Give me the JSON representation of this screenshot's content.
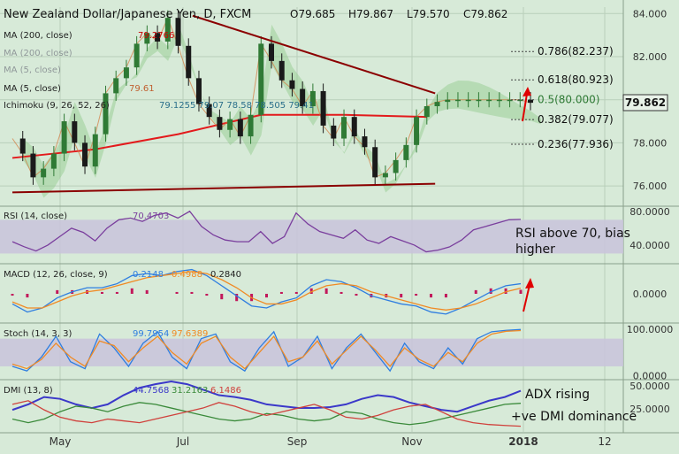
{
  "colors": {
    "background": "#d7ead8",
    "grid": "#b9cfba",
    "candle_up": "#2f7a35",
    "candle_down": "#1a1a1a",
    "ma200": "#e31a1c",
    "ma5": "#d4763a",
    "cloud_up": "#8fc98a",
    "cloud_down": "#d9a88a",
    "trendline": "#8b0000",
    "annotation": "#e00000",
    "rsi": "#7a3e9d",
    "band": "#c9c3dc",
    "macd_line": "#2f7ee0",
    "macd_signal": "#f08a24",
    "macd_hist": "#c2185b",
    "stoch_k": "#2f7ee0",
    "stoch_d": "#f08a24",
    "adx": "#3b38c9",
    "dmi_plus": "#3a8a3a",
    "dmi_minus": "#d0413c",
    "fib": "#444444"
  },
  "chart_data": {
    "type": "line",
    "title": "New Zealand Dollar/Japanese Yen, D, FXCM",
    "ohlc": {
      "o": "O79.685",
      "h": "H79.867",
      "l": "L79.570",
      "c": "C79.862"
    },
    "last_price": "79.862",
    "x_ticks": [
      "May",
      "Jul",
      "Sep",
      "Nov",
      "2018",
      "12"
    ],
    "price_axis": {
      "ticks": [
        "84.000",
        "82.000",
        "80.000",
        "78.000",
        "76.000"
      ],
      "ylim": [
        75.1,
        84.3
      ]
    },
    "indicator_labels": [
      {
        "text": "MA (200, close)",
        "value": "79.2766"
      },
      {
        "text": "MA (200, close)",
        "value": ""
      },
      {
        "text": "MA (5, close)",
        "value": ""
      },
      {
        "text": "MA (5, close)",
        "value": "79.61"
      },
      {
        "text": "Ichimoku (9, 26, 52, 26)",
        "value": "79.1255  79.07  78.58  78.505  79.41"
      }
    ],
    "series": [
      {
        "name": "Price",
        "x": [
          0,
          5,
          10,
          15,
          20,
          25,
          30,
          35,
          40,
          45,
          50,
          55,
          60,
          65,
          70,
          75,
          80,
          85,
          90,
          95,
          100,
          105,
          110,
          115,
          120,
          125,
          130,
          135,
          140,
          145,
          150,
          155,
          160,
          165,
          170,
          175,
          180,
          185,
          190,
          195,
          200,
          205,
          210,
          215,
          220,
          225,
          230,
          235,
          240,
          245,
          250
        ],
        "values": [
          78.2,
          77.5,
          76.4,
          76.8,
          77.5,
          79.0,
          78.0,
          76.9,
          78.4,
          80.3,
          81.0,
          81.5,
          82.6,
          83.1,
          82.7,
          83.8,
          82.5,
          81.0,
          79.8,
          79.2,
          78.6,
          79.1,
          78.3,
          79.3,
          82.6,
          81.8,
          80.9,
          80.5,
          79.7,
          80.4,
          78.8,
          78.2,
          79.2,
          78.3,
          77.8,
          76.4,
          76.6,
          77.2,
          77.9,
          79.2,
          79.7,
          79.9,
          80.0,
          80.0,
          80.0,
          80.0,
          80.0,
          80.0,
          80.0,
          80.0,
          79.86
        ]
      }
    ],
    "ma200_points": [
      [
        0,
        77.3
      ],
      [
        40,
        77.7
      ],
      [
        80,
        78.4
      ],
      [
        120,
        79.3
      ],
      [
        160,
        79.3
      ],
      [
        200,
        79.2
      ]
    ],
    "trendlines": [
      {
        "from": [
          87,
          83.9
        ],
        "to": [
          204,
          80.3
        ]
      },
      {
        "from": [
          0,
          75.7
        ],
        "to": [
          204,
          76.1
        ]
      }
    ],
    "fib_levels": [
      {
        "label": "0.786(82.237)",
        "value": 82.237
      },
      {
        "label": "0.618(80.923)",
        "value": 80.923
      },
      {
        "label": "0.5(80.000)",
        "value": 80.0
      },
      {
        "label": "0.382(79.077)",
        "value": 79.077
      },
      {
        "label": "0.236(77.936)",
        "value": 77.936
      }
    ],
    "panels": [
      {
        "id": "rsi",
        "label": "RSI (14, close)",
        "value": "70.4703",
        "axis_ticks": [
          "80.0000",
          "40.0000"
        ],
        "ylim": [
          20,
          85
        ],
        "band": [
          30,
          70
        ],
        "note": "RSI above 70, bias higher",
        "series": [
          {
            "name": "RSI",
            "values": [
              44,
              38,
              33,
              40,
              50,
              60,
              55,
              45,
              60,
              70,
              72,
              68,
              75,
              78,
              72,
              80,
              62,
              52,
              46,
              44,
              44,
              56,
              42,
              50,
              78,
              65,
              56,
              52,
              48,
              58,
              46,
              42,
              50,
              45,
              40,
              32,
              34,
              38,
              46,
              58,
              62,
              66,
              70,
              70.47
            ]
          }
        ]
      },
      {
        "id": "macd",
        "label": "MACD (12, 26, close, 9)",
        "values": [
          "0.2148",
          "0.4988",
          "0.2840"
        ],
        "axis_ticks": [
          "0.0000"
        ],
        "ylim": [
          -1.4,
          1.4
        ],
        "series": [
          {
            "name": "MACD",
            "values": [
              -0.5,
              -0.9,
              -0.7,
              -0.2,
              0.1,
              0.3,
              0.3,
              0.5,
              0.9,
              1.0,
              0.9,
              1.1,
              1.2,
              0.9,
              0.4,
              -0.1,
              -0.6,
              -0.7,
              -0.4,
              -0.2,
              0.4,
              0.7,
              0.6,
              0.3,
              -0.1,
              -0.3,
              -0.5,
              -0.6,
              -0.9,
              -1.0,
              -0.7,
              -0.3,
              0.1,
              0.4,
              0.5
            ]
          },
          {
            "name": "Signal",
            "values": [
              -0.4,
              -0.7,
              -0.7,
              -0.4,
              -0.1,
              0.1,
              0.2,
              0.4,
              0.6,
              0.8,
              0.9,
              1.0,
              1.1,
              1.0,
              0.7,
              0.3,
              -0.2,
              -0.5,
              -0.5,
              -0.3,
              0.1,
              0.4,
              0.5,
              0.4,
              0.1,
              -0.1,
              -0.3,
              -0.5,
              -0.7,
              -0.8,
              -0.7,
              -0.5,
              -0.2,
              0.1,
              0.28
            ]
          }
        ]
      },
      {
        "id": "stoch",
        "label": "Stoch (14, 3, 3)",
        "values": [
          "99.7954",
          "97.6389"
        ],
        "axis_ticks": [
          "100.0000",
          "0.0000"
        ],
        "ylim": [
          -5,
          110
        ],
        "band": [
          20,
          80
        ],
        "series": [
          {
            "name": "%K",
            "values": [
              20,
              10,
              40,
              85,
              30,
              15,
              90,
              60,
              20,
              70,
              95,
              40,
              15,
              80,
              90,
              30,
              10,
              60,
              95,
              20,
              40,
              85,
              15,
              60,
              90,
              50,
              10,
              70,
              30,
              15,
              60,
              25,
              80,
              95,
              98,
              99.8
            ]
          },
          {
            "name": "%D",
            "values": [
              25,
              15,
              35,
              70,
              40,
              20,
              75,
              65,
              30,
              60,
              85,
              50,
              25,
              70,
              85,
              40,
              15,
              50,
              85,
              30,
              40,
              75,
              25,
              55,
              85,
              55,
              20,
              60,
              35,
              20,
              50,
              30,
              70,
              90,
              96,
              97.6
            ]
          }
        ]
      },
      {
        "id": "dmi",
        "label": "DMI (13, 8)",
        "values": [
          "44.7568",
          "31.2163",
          "6.1486"
        ],
        "axis_ticks": [
          "50.0000",
          "25.0000"
        ],
        "ylim": [
          0,
          55
        ],
        "note1": "ADX rising",
        "note2": "+ve DMI dominance",
        "series": [
          {
            "name": "ADX",
            "values": [
              24,
              30,
              38,
              36,
              30,
              26,
              30,
              40,
              48,
              52,
              55,
              52,
              46,
              40,
              38,
              35,
              30,
              28,
              26,
              26,
              27,
              30,
              36,
              40,
              38,
              32,
              28,
              24,
              22,
              28,
              34,
              38,
              44.76
            ]
          },
          {
            "name": "+DI",
            "values": [
              14,
              10,
              14,
              22,
              28,
              26,
              22,
              28,
              32,
              30,
              26,
              22,
              18,
              14,
              12,
              14,
              20,
              18,
              14,
              12,
              14,
              22,
              20,
              14,
              10,
              8,
              10,
              14,
              18,
              22,
              26,
              30,
              31.2
            ]
          },
          {
            "name": "-DI",
            "values": [
              30,
              34,
              24,
              16,
              12,
              10,
              14,
              12,
              10,
              14,
              18,
              22,
              26,
              32,
              28,
              22,
              18,
              22,
              26,
              30,
              24,
              16,
              14,
              18,
              24,
              28,
              30,
              22,
              14,
              10,
              8,
              7,
              6.15
            ]
          }
        ]
      }
    ]
  }
}
